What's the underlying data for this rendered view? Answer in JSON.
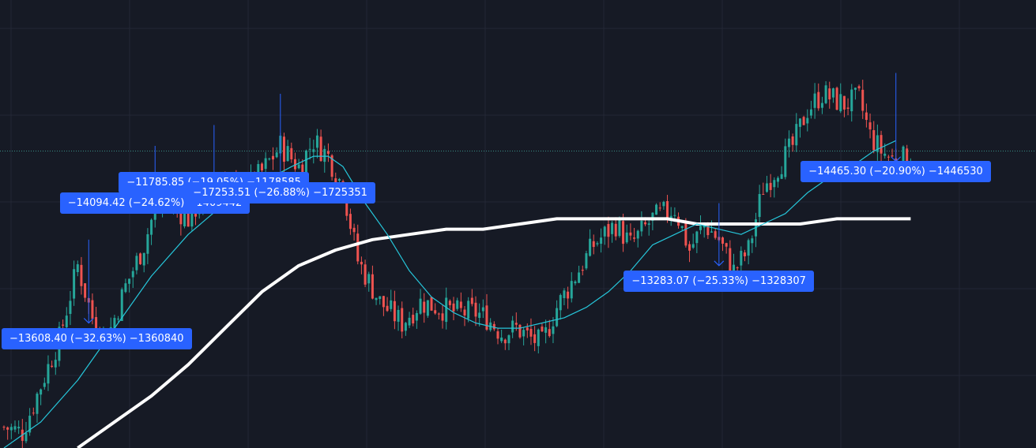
{
  "colors": {
    "background": "#161a25",
    "grid": "#232735",
    "candle_up": "#26a69a",
    "candle_down": "#ef5350",
    "ma_fast": "#26c6da",
    "ma_slow": "#ffffff",
    "annotation_bg": "#2962ff",
    "price_line": "#3a8e86"
  },
  "chart_data": {
    "type": "candlestick",
    "title": "",
    "grid": true,
    "ylim": [
      14,
      100
    ],
    "current_price_line": 71,
    "candles": {
      "count": 260,
      "close_path": [
        [
          0,
          18
        ],
        [
          5,
          17
        ],
        [
          10,
          26
        ],
        [
          15,
          35
        ],
        [
          20,
          49
        ],
        [
          24,
          39
        ],
        [
          28,
          35
        ],
        [
          33,
          45
        ],
        [
          38,
          53
        ],
        [
          41,
          60
        ],
        [
          45,
          61
        ],
        [
          50,
          58
        ],
        [
          55,
          63
        ],
        [
          60,
          66
        ],
        [
          65,
          63
        ],
        [
          70,
          67
        ],
        [
          75,
          72
        ],
        [
          80,
          68
        ],
        [
          84,
          73
        ],
        [
          88,
          70
        ],
        [
          92,
          64
        ],
        [
          96,
          50
        ],
        [
          102,
          42
        ],
        [
          108,
          38
        ],
        [
          113,
          42
        ],
        [
          118,
          41
        ],
        [
          123,
          40
        ],
        [
          128,
          40
        ],
        [
          131,
          39
        ],
        [
          135,
          36
        ],
        [
          139,
          37
        ],
        [
          143,
          35
        ],
        [
          146,
          34
        ],
        [
          150,
          41
        ],
        [
          155,
          47
        ],
        [
          160,
          53
        ],
        [
          166,
          57
        ],
        [
          170,
          53
        ],
        [
          176,
          58
        ],
        [
          182,
          60
        ],
        [
          186,
          52
        ],
        [
          190,
          57
        ],
        [
          194,
          54
        ],
        [
          198,
          48
        ],
        [
          202,
          52
        ],
        [
          206,
          64
        ],
        [
          210,
          68
        ],
        [
          214,
          72
        ],
        [
          218,
          79
        ],
        [
          222,
          82
        ],
        [
          228,
          80
        ],
        [
          232,
          81
        ],
        [
          235,
          74
        ],
        [
          238,
          71
        ],
        [
          242,
          69
        ],
        [
          246,
          70
        ]
      ]
    },
    "series": [
      {
        "kind": "ma-fast",
        "values": [
          [
            0,
            14
          ],
          [
            10,
            19
          ],
          [
            20,
            27
          ],
          [
            30,
            37
          ],
          [
            40,
            47
          ],
          [
            50,
            55
          ],
          [
            60,
            61
          ],
          [
            70,
            65
          ],
          [
            78,
            68
          ],
          [
            84,
            70
          ],
          [
            88,
            70
          ],
          [
            92,
            68
          ],
          [
            98,
            61
          ],
          [
            104,
            55
          ],
          [
            110,
            48
          ],
          [
            116,
            43
          ],
          [
            122,
            40
          ],
          [
            128,
            38
          ],
          [
            134,
            37
          ],
          [
            140,
            37
          ],
          [
            146,
            38
          ],
          [
            152,
            39
          ],
          [
            158,
            41
          ],
          [
            164,
            44
          ],
          [
            170,
            48
          ],
          [
            176,
            53
          ],
          [
            182,
            55
          ],
          [
            188,
            57
          ],
          [
            194,
            56
          ],
          [
            200,
            55
          ],
          [
            206,
            57
          ],
          [
            212,
            59
          ],
          [
            218,
            63
          ],
          [
            224,
            66
          ],
          [
            230,
            68
          ],
          [
            236,
            71
          ],
          [
            242,
            73
          ]
        ]
      },
      {
        "kind": "ma-slow",
        "values": [
          [
            20,
            14
          ],
          [
            30,
            19
          ],
          [
            40,
            24
          ],
          [
            50,
            30
          ],
          [
            60,
            37
          ],
          [
            70,
            44
          ],
          [
            80,
            49
          ],
          [
            90,
            52
          ],
          [
            100,
            54
          ],
          [
            110,
            55
          ],
          [
            120,
            56
          ],
          [
            130,
            56
          ],
          [
            140,
            57
          ],
          [
            150,
            58
          ],
          [
            160,
            58
          ],
          [
            170,
            58
          ],
          [
            180,
            58
          ],
          [
            188,
            57
          ],
          [
            196,
            57
          ],
          [
            206,
            57
          ],
          [
            216,
            57
          ],
          [
            226,
            58
          ],
          [
            236,
            58
          ],
          [
            246,
            58
          ]
        ]
      }
    ],
    "annotations": [
      {
        "label": "−13608.40 (−32.63%) −1360840",
        "x": 23,
        "y_top": 54,
        "y_bottom": 38,
        "label_y": 35
      },
      {
        "label": "−14094.42 (−24.62%) −1409442",
        "x": 41,
        "y_top": 72,
        "y_bottom": 59,
        "label_y": 61
      },
      {
        "label": "−11785.85 (−19.05%) −1178585",
        "x": 57,
        "y_top": 76,
        "y_bottom": 62,
        "label_y": 65
      },
      {
        "label": "−17253.51 (−26.88%) −1725351",
        "x": 75,
        "y_top": 82,
        "y_bottom": 66,
        "label_y": 63
      },
      {
        "label": "−13283.07 (−25.33%) −1328307",
        "x": 194,
        "y_top": 61,
        "y_bottom": 49,
        "label_y": 46
      },
      {
        "label": "−14465.30 (−20.90%) −1446530",
        "x": 242,
        "y_top": 86,
        "y_bottom": 69,
        "label_y": 67
      }
    ]
  }
}
